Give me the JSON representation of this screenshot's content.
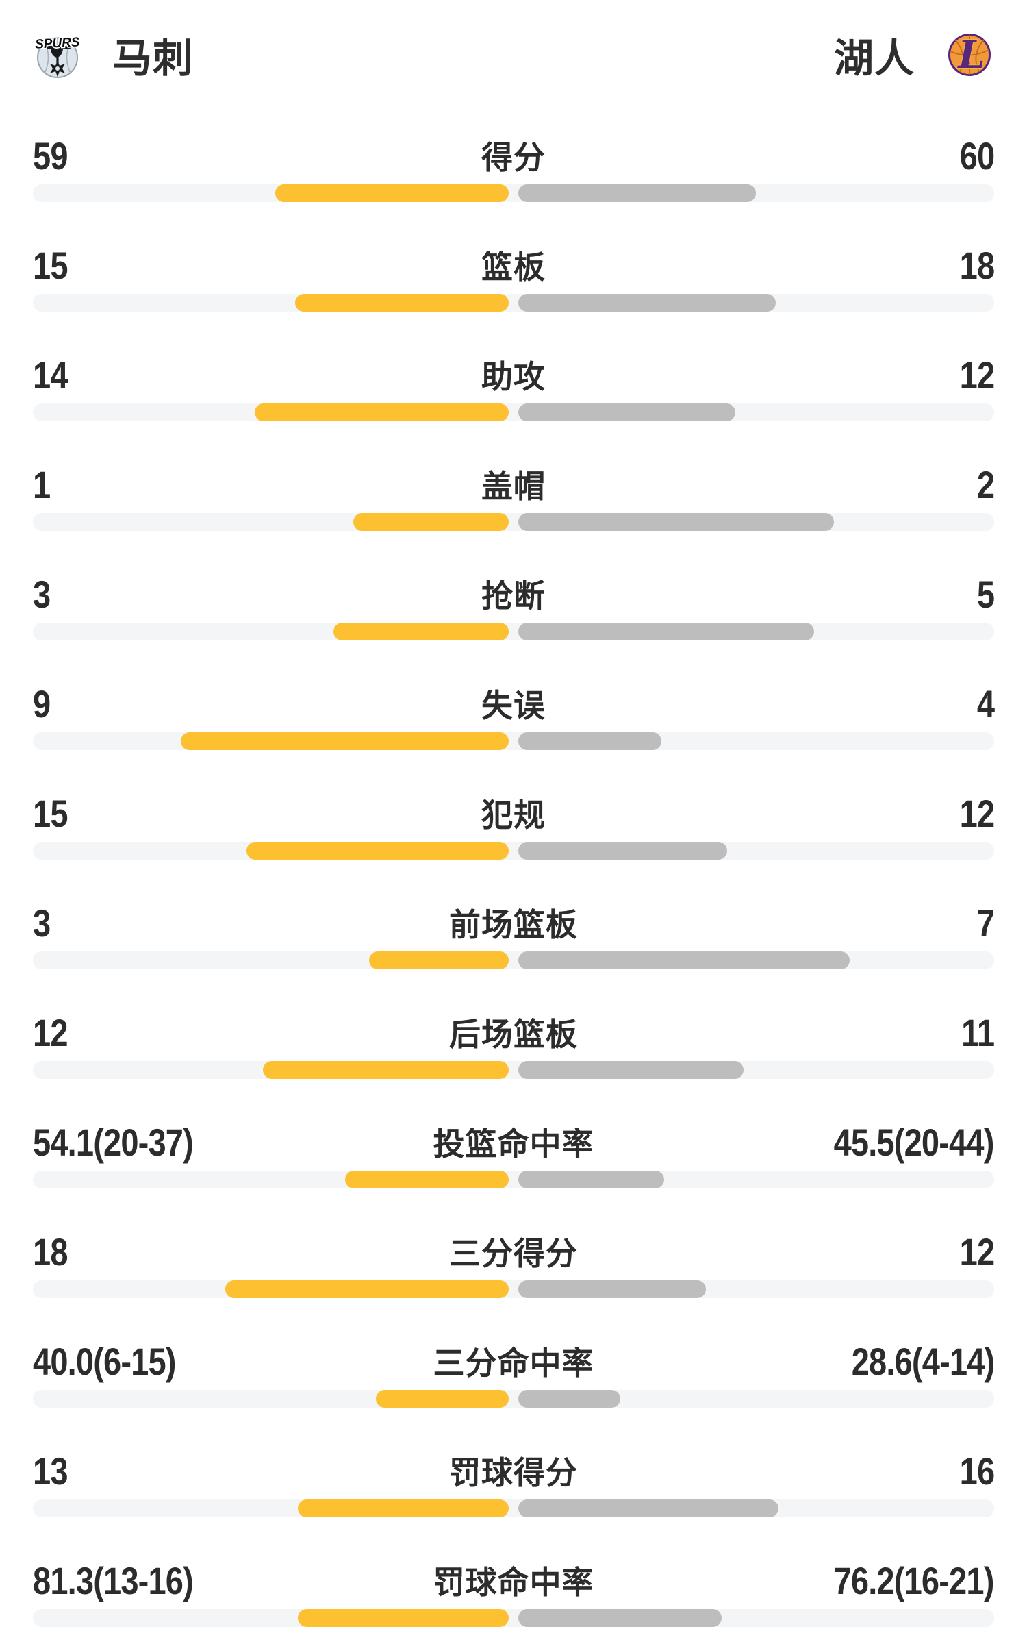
{
  "header": {
    "left_team": {
      "name": "马刺",
      "logo": "spurs-logo"
    },
    "right_team": {
      "name": "湖人",
      "logo": "lakers-logo"
    }
  },
  "colors": {
    "left_bar": "#fcc030",
    "right_bar": "#bdbdbd",
    "track": "#f4f5f7",
    "text": "#2c2c2c",
    "spurs_silver": "#dde4eb",
    "lakers_purple": "#57267f",
    "lakers_gold": "#f5b73d",
    "lakers_orange": "#f29a3b"
  },
  "stats": [
    {
      "label": "得分",
      "type": "count",
      "left": {
        "display": "59",
        "value": 59
      },
      "right": {
        "display": "60",
        "value": 60
      }
    },
    {
      "label": "篮板",
      "type": "count",
      "left": {
        "display": "15",
        "value": 15
      },
      "right": {
        "display": "18",
        "value": 18
      }
    },
    {
      "label": "助攻",
      "type": "count",
      "left": {
        "display": "14",
        "value": 14
      },
      "right": {
        "display": "12",
        "value": 12
      }
    },
    {
      "label": "盖帽",
      "type": "count",
      "left": {
        "display": "1",
        "value": 1
      },
      "right": {
        "display": "2",
        "value": 2
      }
    },
    {
      "label": "抢断",
      "type": "count",
      "left": {
        "display": "3",
        "value": 3
      },
      "right": {
        "display": "5",
        "value": 5
      }
    },
    {
      "label": "失误",
      "type": "count",
      "left": {
        "display": "9",
        "value": 9
      },
      "right": {
        "display": "4",
        "value": 4
      }
    },
    {
      "label": "犯规",
      "type": "count",
      "left": {
        "display": "15",
        "value": 15
      },
      "right": {
        "display": "12",
        "value": 12
      }
    },
    {
      "label": "前场篮板",
      "type": "count",
      "left": {
        "display": "3",
        "value": 3
      },
      "right": {
        "display": "7",
        "value": 7
      }
    },
    {
      "label": "后场篮板",
      "type": "count",
      "left": {
        "display": "12",
        "value": 12
      },
      "right": {
        "display": "11",
        "value": 11
      }
    },
    {
      "label": "投篮命中率",
      "type": "percent",
      "left": {
        "display": "54.1(20-37)",
        "value": 54.1
      },
      "right": {
        "display": "45.5(20-44)",
        "value": 45.5
      }
    },
    {
      "label": "三分得分",
      "type": "count",
      "left": {
        "display": "18",
        "value": 18
      },
      "right": {
        "display": "12",
        "value": 12
      }
    },
    {
      "label": "三分命中率",
      "type": "percent",
      "left": {
        "display": "40.0(6-15)",
        "value": 40.0
      },
      "right": {
        "display": "28.6(4-14)",
        "value": 28.6
      }
    },
    {
      "label": "罚球得分",
      "type": "count",
      "left": {
        "display": "13",
        "value": 13
      },
      "right": {
        "display": "16",
        "value": 16
      }
    },
    {
      "label": "罚球命中率",
      "type": "percent",
      "left": {
        "display": "81.3(13-16)",
        "value": 81.3
      },
      "right": {
        "display": "76.2(16-21)",
        "value": 76.2
      }
    }
  ],
  "chart_data": {
    "type": "bar",
    "orientation": "paired-horizontal-from-center",
    "categories": [
      "得分",
      "篮板",
      "助攻",
      "盖帽",
      "抢断",
      "失误",
      "犯规",
      "前场篮板",
      "后场篮板",
      "投篮命中率",
      "三分得分",
      "三分命中率",
      "罚球得分",
      "罚球命中率"
    ],
    "series": [
      {
        "name": "马刺",
        "color": "#fcc030",
        "values": [
          59,
          15,
          14,
          1,
          3,
          9,
          15,
          3,
          12,
          54.1,
          18,
          40.0,
          13,
          81.3
        ]
      },
      {
        "name": "湖人",
        "color": "#bdbdbd",
        "values": [
          60,
          18,
          12,
          2,
          5,
          4,
          12,
          7,
          11,
          45.5,
          12,
          28.6,
          16,
          76.2
        ]
      }
    ],
    "value_annotations": {
      "马刺": [
        "59",
        "15",
        "14",
        "1",
        "3",
        "9",
        "15",
        "3",
        "12",
        "54.1(20-37)",
        "18",
        "40.0(6-15)",
        "13",
        "81.3(13-16)"
      ],
      "湖人": [
        "60",
        "18",
        "12",
        "2",
        "5",
        "4",
        "12",
        "7",
        "11",
        "45.5(20-44)",
        "12",
        "28.6(4-14)",
        "16",
        "76.2(16-21)"
      ]
    },
    "legend_position": "header",
    "grid": false
  }
}
